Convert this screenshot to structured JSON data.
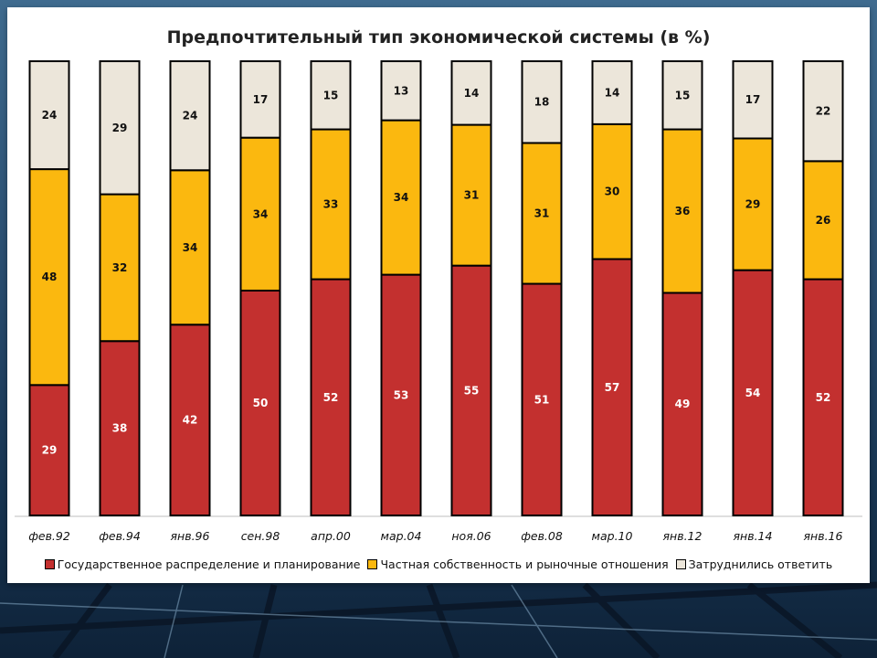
{
  "chart_data": {
    "type": "bar",
    "stacked": true,
    "title": "Предпочтительный тип экономической системы (в %)",
    "categories": [
      "фев.92",
      "фев.94",
      "янв.96",
      "сен.98",
      "апр.00",
      "мар.04",
      "ноя.06",
      "фев.08",
      "мар.10",
      "янв.12",
      "янв.14",
      "янв.16"
    ],
    "series": [
      {
        "name": "Государственное распределение и планирование",
        "color": "#c3302f",
        "values": [
          29,
          38,
          42,
          50,
          52,
          53,
          55,
          51,
          57,
          49,
          54,
          52
        ]
      },
      {
        "name": "Частная собственность и рыночные отношения",
        "color": "#fbb80f",
        "values": [
          48,
          32,
          34,
          34,
          33,
          34,
          31,
          31,
          30,
          36,
          29,
          26
        ]
      },
      {
        "name": "Затруднились ответить",
        "color": "#ece6da",
        "values": [
          24,
          29,
          24,
          17,
          15,
          13,
          14,
          18,
          14,
          15,
          17,
          22
        ]
      }
    ],
    "legend_position": "bottom",
    "grid": false
  }
}
